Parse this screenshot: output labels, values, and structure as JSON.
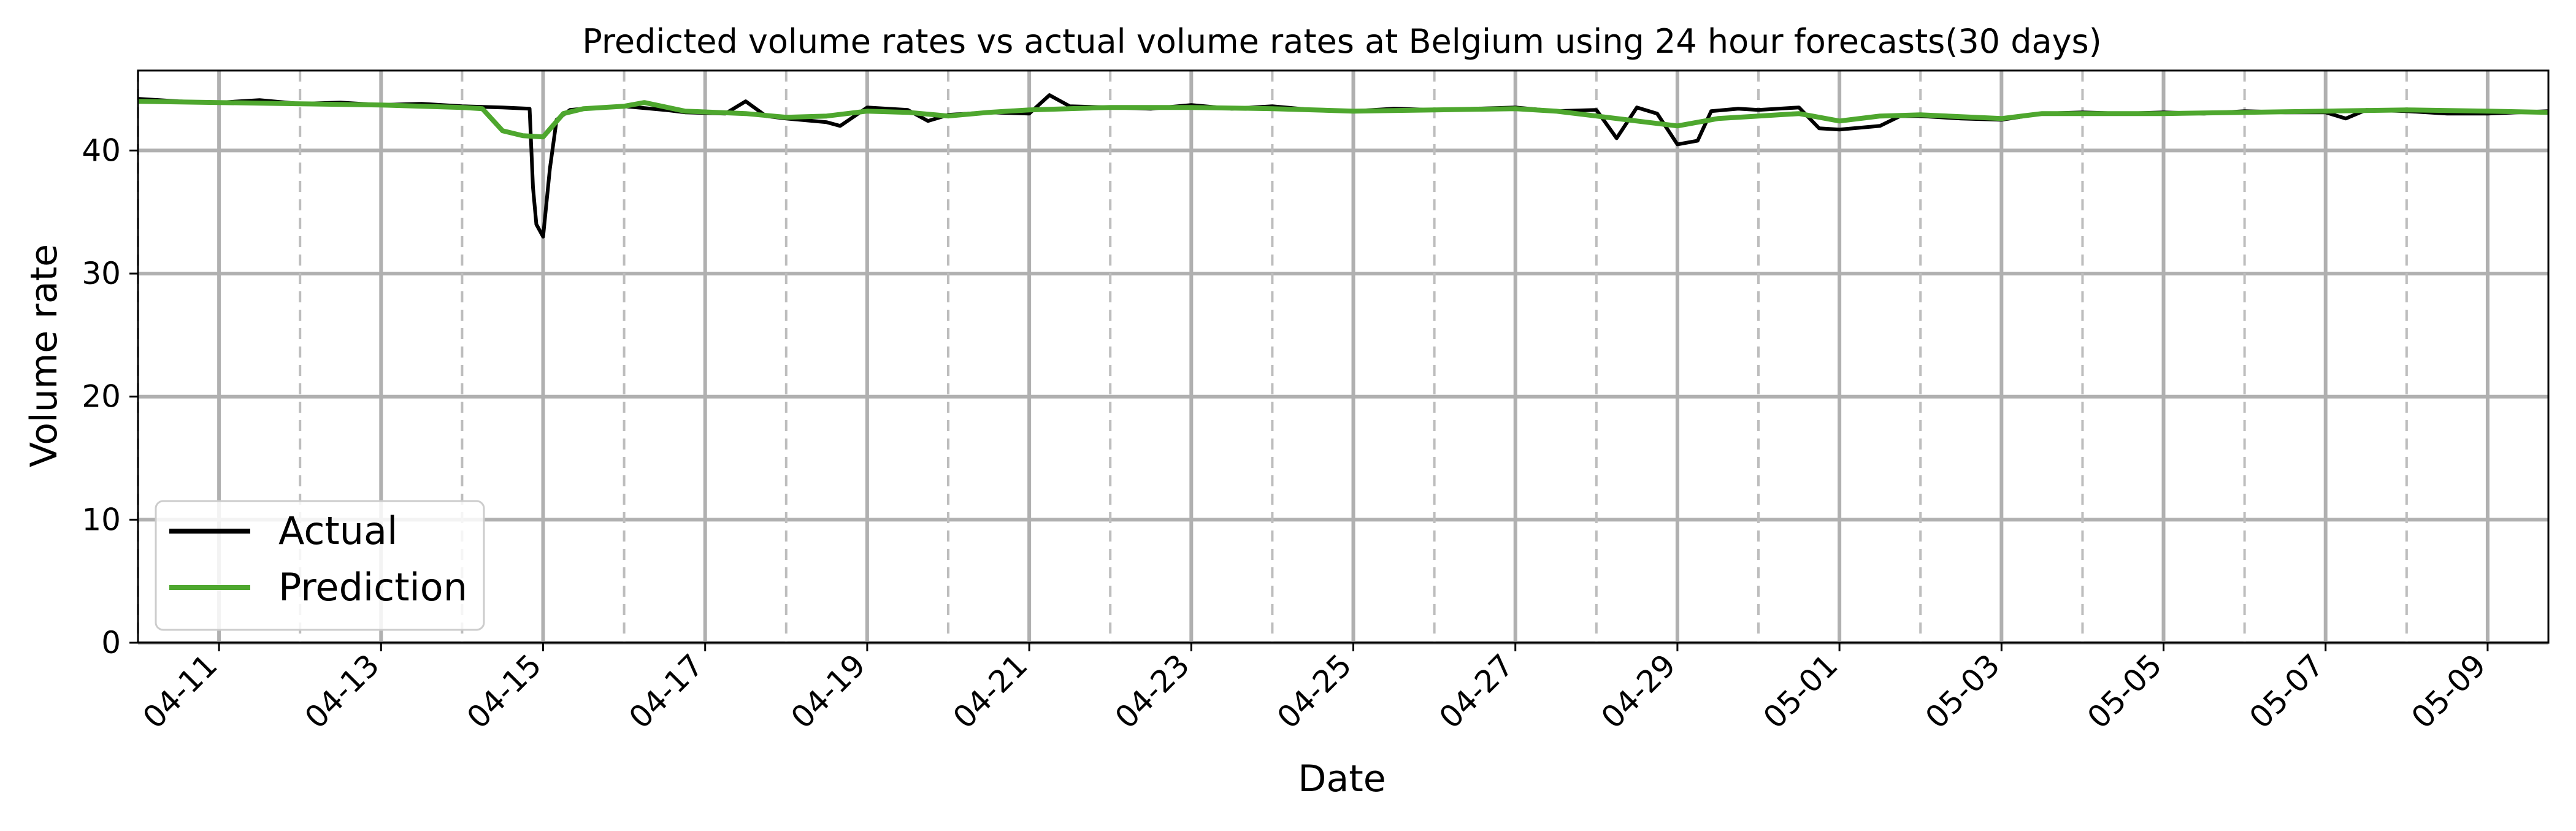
{
  "chart_data": {
    "type": "line",
    "title": "Predicted volume rates vs actual volume rates at Belgium using 24 hour forecasts(30 days)",
    "xlabel": "Date",
    "ylabel": "Volume rate",
    "ylim": [
      0,
      46.5
    ],
    "xlim": [
      "2024-04-10 00:00",
      "2024-05-09 18:00"
    ],
    "yticks": [
      0,
      10,
      20,
      30,
      40
    ],
    "xtick_labels": [
      "04-11",
      "04-13",
      "04-15",
      "04-17",
      "04-19",
      "04-21",
      "04-23",
      "04-25",
      "04-27",
      "04-29",
      "05-01",
      "05-03",
      "05-05",
      "05-07",
      "05-09"
    ],
    "grid": true,
    "legend": {
      "placement": "bottom-left",
      "entries": [
        "Actual",
        "Prediction"
      ]
    },
    "series": [
      {
        "name": "Actual",
        "color": "#000000",
        "points": [
          [
            "2024-04-10 00:00",
            44.2
          ],
          [
            "2024-04-10 12:00",
            44.0
          ],
          [
            "2024-04-11 00:00",
            43.9
          ],
          [
            "2024-04-11 12:00",
            44.1
          ],
          [
            "2024-04-12 00:00",
            43.8
          ],
          [
            "2024-04-12 12:00",
            43.9
          ],
          [
            "2024-04-13 00:00",
            43.7
          ],
          [
            "2024-04-13 12:00",
            43.8
          ],
          [
            "2024-04-14 00:00",
            43.6
          ],
          [
            "2024-04-14 12:00",
            43.5
          ],
          [
            "2024-04-14 20:00",
            43.4
          ],
          [
            "2024-04-14 21:00",
            37.0
          ],
          [
            "2024-04-14 22:00",
            34.0
          ],
          [
            "2024-04-15 00:00",
            33.0
          ],
          [
            "2024-04-15 02:00",
            38.5
          ],
          [
            "2024-04-15 04:00",
            42.5
          ],
          [
            "2024-04-15 08:00",
            43.3
          ],
          [
            "2024-04-15 12:00",
            43.4
          ],
          [
            "2024-04-16 00:00",
            43.6
          ],
          [
            "2024-04-16 12:00",
            43.3
          ],
          [
            "2024-04-16 18:00",
            43.1
          ],
          [
            "2024-04-17 06:00",
            43.0
          ],
          [
            "2024-04-17 12:00",
            44.0
          ],
          [
            "2024-04-17 18:00",
            42.8
          ],
          [
            "2024-04-18 00:00",
            42.6
          ],
          [
            "2024-04-18 12:00",
            42.3
          ],
          [
            "2024-04-18 16:00",
            42.0
          ],
          [
            "2024-04-19 00:00",
            43.5
          ],
          [
            "2024-04-19 12:00",
            43.3
          ],
          [
            "2024-04-19 18:00",
            42.4
          ],
          [
            "2024-04-20 00:00",
            42.9
          ],
          [
            "2024-04-20 12:00",
            43.1
          ],
          [
            "2024-04-21 00:00",
            43.0
          ],
          [
            "2024-04-21 06:00",
            44.5
          ],
          [
            "2024-04-21 12:00",
            43.6
          ],
          [
            "2024-04-22 00:00",
            43.5
          ],
          [
            "2024-04-22 12:00",
            43.4
          ],
          [
            "2024-04-23 00:00",
            43.7
          ],
          [
            "2024-04-23 12:00",
            43.4
          ],
          [
            "2024-04-24 00:00",
            43.6
          ],
          [
            "2024-04-24 12:00",
            43.3
          ],
          [
            "2024-04-25 00:00",
            43.2
          ],
          [
            "2024-04-25 12:00",
            43.4
          ],
          [
            "2024-04-26 00:00",
            43.3
          ],
          [
            "2024-04-26 12:00",
            43.4
          ],
          [
            "2024-04-27 00:00",
            43.5
          ],
          [
            "2024-04-27 12:00",
            43.2
          ],
          [
            "2024-04-28 00:00",
            43.3
          ],
          [
            "2024-04-28 06:00",
            41.0
          ],
          [
            "2024-04-28 12:00",
            43.5
          ],
          [
            "2024-04-28 18:00",
            43.0
          ],
          [
            "2024-04-29 00:00",
            40.5
          ],
          [
            "2024-04-29 06:00",
            40.8
          ],
          [
            "2024-04-29 10:00",
            43.2
          ],
          [
            "2024-04-29 18:00",
            43.4
          ],
          [
            "2024-04-30 00:00",
            43.3
          ],
          [
            "2024-04-30 12:00",
            43.5
          ],
          [
            "2024-04-30 18:00",
            41.8
          ],
          [
            "2024-05-01 00:00",
            41.7
          ],
          [
            "2024-05-01 12:00",
            42.0
          ],
          [
            "2024-05-01 18:00",
            42.8
          ],
          [
            "2024-05-02 00:00",
            42.8
          ],
          [
            "2024-05-02 12:00",
            42.6
          ],
          [
            "2024-05-03 00:00",
            42.5
          ],
          [
            "2024-05-03 12:00",
            43.0
          ],
          [
            "2024-05-04 00:00",
            43.1
          ],
          [
            "2024-05-04 12:00",
            43.0
          ],
          [
            "2024-05-05 00:00",
            43.1
          ],
          [
            "2024-05-05 12:00",
            43.0
          ],
          [
            "2024-05-06 00:00",
            43.2
          ],
          [
            "2024-05-06 12:00",
            43.1
          ],
          [
            "2024-05-07 00:00",
            43.1
          ],
          [
            "2024-05-07 06:00",
            42.6
          ],
          [
            "2024-05-07 12:00",
            43.3
          ],
          [
            "2024-05-08 00:00",
            43.2
          ],
          [
            "2024-05-08 12:00",
            43.0
          ],
          [
            "2024-05-09 00:00",
            43.0
          ],
          [
            "2024-05-09 18:00",
            43.2
          ]
        ]
      },
      {
        "name": "Prediction",
        "color": "#4ea72e",
        "points": [
          [
            "2024-04-10 00:00",
            44.0
          ],
          [
            "2024-04-11 00:00",
            43.9
          ],
          [
            "2024-04-12 00:00",
            43.8
          ],
          [
            "2024-04-13 00:00",
            43.7
          ],
          [
            "2024-04-14 00:00",
            43.5
          ],
          [
            "2024-04-14 06:00",
            43.4
          ],
          [
            "2024-04-14 12:00",
            41.6
          ],
          [
            "2024-04-14 18:00",
            41.2
          ],
          [
            "2024-04-15 00:00",
            41.1
          ],
          [
            "2024-04-15 06:00",
            43.0
          ],
          [
            "2024-04-15 12:00",
            43.4
          ],
          [
            "2024-04-16 00:00",
            43.6
          ],
          [
            "2024-04-16 06:00",
            43.9
          ],
          [
            "2024-04-16 18:00",
            43.2
          ],
          [
            "2024-04-17 12:00",
            43.0
          ],
          [
            "2024-04-18 00:00",
            42.7
          ],
          [
            "2024-04-18 12:00",
            42.8
          ],
          [
            "2024-04-19 00:00",
            43.2
          ],
          [
            "2024-04-19 12:00",
            43.1
          ],
          [
            "2024-04-20 00:00",
            42.8
          ],
          [
            "2024-04-20 12:00",
            43.1
          ],
          [
            "2024-04-21 00:00",
            43.3
          ],
          [
            "2024-04-22 00:00",
            43.5
          ],
          [
            "2024-04-23 00:00",
            43.5
          ],
          [
            "2024-04-24 00:00",
            43.4
          ],
          [
            "2024-04-25 00:00",
            43.2
          ],
          [
            "2024-04-26 00:00",
            43.3
          ],
          [
            "2024-04-27 00:00",
            43.4
          ],
          [
            "2024-04-27 12:00",
            43.2
          ],
          [
            "2024-04-28 00:00",
            42.8
          ],
          [
            "2024-04-28 12:00",
            42.4
          ],
          [
            "2024-04-29 00:00",
            42.0
          ],
          [
            "2024-04-29 12:00",
            42.6
          ],
          [
            "2024-04-30 00:00",
            42.8
          ],
          [
            "2024-04-30 12:00",
            43.0
          ],
          [
            "2024-05-01 00:00",
            42.4
          ],
          [
            "2024-05-01 12:00",
            42.8
          ],
          [
            "2024-05-02 00:00",
            42.9
          ],
          [
            "2024-05-03 00:00",
            42.6
          ],
          [
            "2024-05-03 12:00",
            43.0
          ],
          [
            "2024-05-04 00:00",
            43.0
          ],
          [
            "2024-05-05 00:00",
            43.0
          ],
          [
            "2024-05-06 00:00",
            43.1
          ],
          [
            "2024-05-07 00:00",
            43.2
          ],
          [
            "2024-05-08 00:00",
            43.3
          ],
          [
            "2024-05-09 00:00",
            43.2
          ],
          [
            "2024-05-09 18:00",
            43.1
          ]
        ]
      }
    ]
  }
}
